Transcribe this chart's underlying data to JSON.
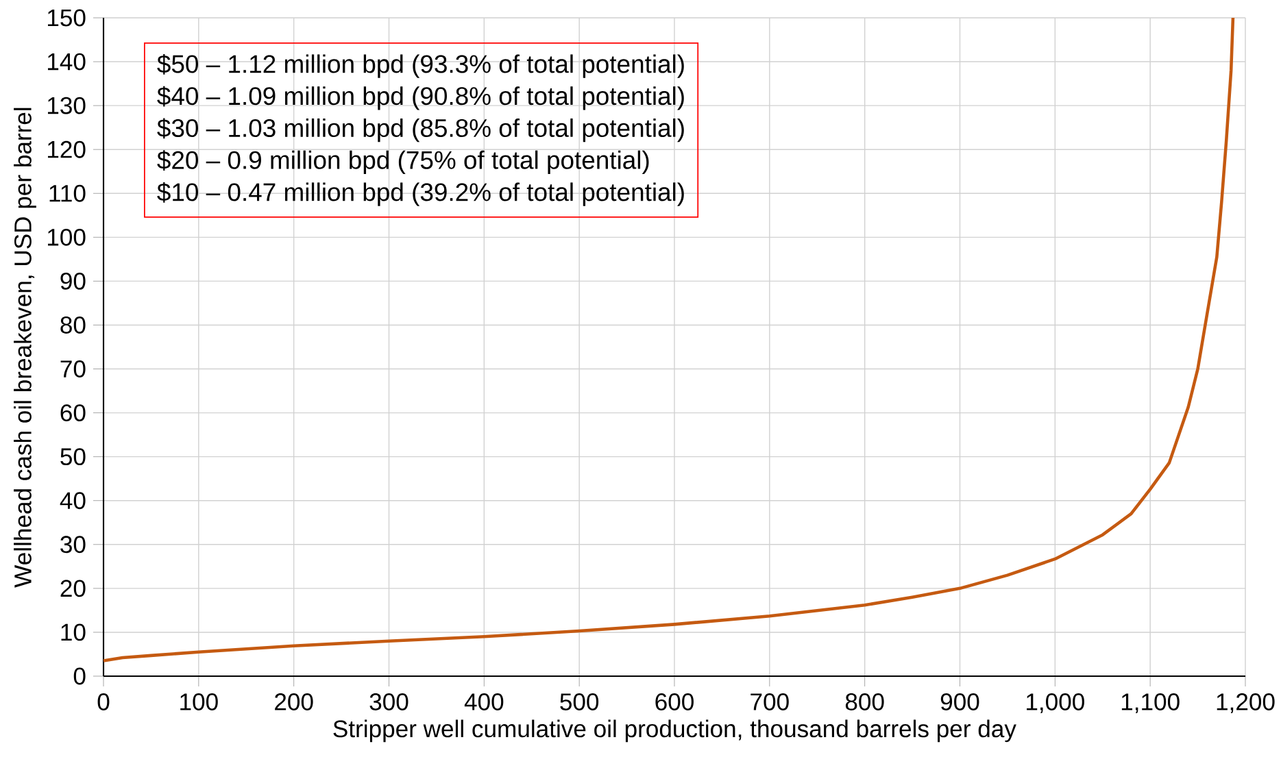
{
  "chart_data": {
    "type": "line",
    "xlabel": "Stripper well cumulative oil production, thousand barrels per day",
    "ylabel": "Wellhead cash oil breakeven,  USD per barrel",
    "annotations": [
      "$50 – 1.12 million bpd (93.3% of total potential)",
      "$40 – 1.09 million bpd (90.8% of total potential)",
      "$30 – 1.03 million bpd (85.8% of total potential)",
      "$20 – 0.9 million bpd (75% of total potential)",
      "$10 – 0.47 million bpd (39.2% of total potential)"
    ],
    "series": [
      {
        "color": "#c55a11",
        "x": [
          0,
          20,
          50,
          100,
          200,
          300,
          400,
          500,
          600,
          700,
          800,
          850,
          900,
          950,
          1000,
          1050,
          1080,
          1100,
          1120,
          1140,
          1150,
          1160,
          1170,
          1175,
          1180,
          1185,
          1187
        ],
        "values": [
          3.5,
          4.2,
          4.7,
          5.5,
          6.9,
          8,
          9,
          10.3,
          11.8,
          13.7,
          16.2,
          18,
          20,
          23,
          26.7,
          32.2,
          37,
          42.6,
          48.6,
          61.3,
          70,
          82.8,
          95.5,
          108,
          122,
          138,
          150
        ]
      }
    ],
    "xlim": [
      0,
      1200
    ],
    "ylim": [
      0,
      150
    ],
    "xticks": [
      0,
      100,
      200,
      300,
      400,
      500,
      600,
      700,
      800,
      900,
      {
        "value": 1000,
        "label": "1,000"
      },
      {
        "value": 1100,
        "label": "1,100"
      },
      {
        "value": 1200,
        "label": "1,200"
      }
    ],
    "yticks": [
      0,
      10,
      20,
      30,
      40,
      50,
      60,
      70,
      80,
      90,
      100,
      110,
      120,
      130,
      140,
      150
    ],
    "grid": true,
    "marker": "none",
    "line_style": "solid"
  }
}
